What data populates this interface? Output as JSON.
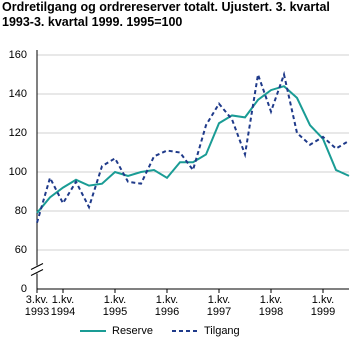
{
  "chart_data": {
    "type": "line",
    "title": "Ordretilgang og ordrereserver totalt. Ujustert. 3. kvartal 1993-3. kvartal 1999. 1995=100",
    "categories": [
      "3.kv. 1993",
      null,
      "1.kv. 1994",
      null,
      null,
      null,
      "1.kv. 1995",
      null,
      null,
      null,
      "1.kv. 1996",
      null,
      null,
      null,
      "1.kv. 1997",
      null,
      null,
      null,
      "1.kv. 1998",
      null,
      null,
      null,
      "1.kv. 1999",
      null,
      null
    ],
    "series": [
      {
        "name": "Reserve",
        "color": "#1a9c95",
        "dashed": false,
        "values": [
          79,
          87,
          92,
          96,
          93,
          94,
          100,
          98,
          100,
          101,
          97,
          105,
          105,
          109,
          125,
          129,
          128,
          137,
          142,
          144,
          138,
          124,
          117,
          101,
          98
        ]
      },
      {
        "name": "Tilgang",
        "color": "#1f3a8a",
        "dashed": true,
        "values": [
          74,
          97,
          84,
          95,
          82,
          103,
          107,
          95,
          94,
          108,
          111,
          110,
          101,
          124,
          135,
          127,
          109,
          150,
          131,
          150,
          120,
          114,
          118,
          112,
          116
        ]
      }
    ],
    "ylim": [
      0,
      160
    ],
    "yticks": [
      0,
      60,
      80,
      100,
      120,
      140,
      160
    ],
    "y_axis_break": true,
    "grid": true,
    "legend": "bottom"
  }
}
